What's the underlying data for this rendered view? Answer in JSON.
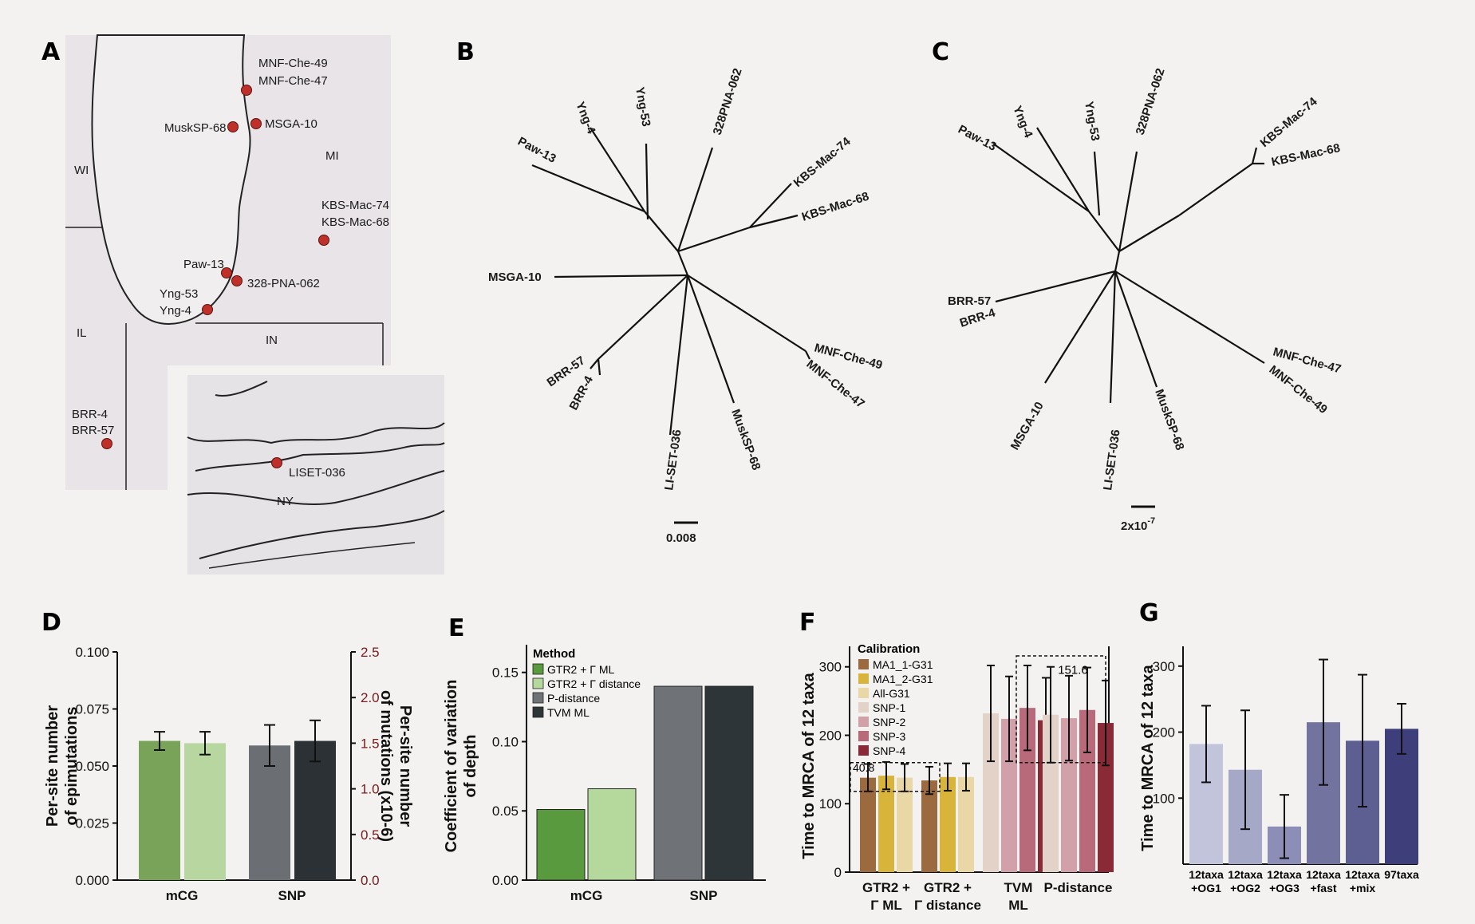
{
  "panels": {
    "A": "A",
    "B": "B",
    "C": "C",
    "D": "D",
    "E": "E",
    "F": "F",
    "G": "G"
  },
  "map": {
    "states": [
      "WI",
      "MI",
      "IL",
      "IN",
      "NY"
    ],
    "sites": [
      {
        "label": "MNF-Che-49\nMNF-Che-47"
      },
      {
        "label": "MuskSP-68"
      },
      {
        "label": "MSGA-10"
      },
      {
        "label": "KBS-Mac-74\nKBS-Mac-68"
      },
      {
        "label": "Paw-13"
      },
      {
        "label": "328-PNA-062"
      },
      {
        "label": "Yng-53\nYng-4"
      },
      {
        "label": "BRR-4\nBRR-57"
      },
      {
        "label": "LISET-036"
      }
    ],
    "site_color": "#c0302a"
  },
  "tree_b": {
    "tips": [
      "Paw-13",
      "Yng-4",
      "Yng-53",
      "328PNA-062",
      "KBS-Mac-74",
      "KBS-Mac-68",
      "MSGA-10",
      "BRR-57",
      "BRR-4",
      "LI-SET-036",
      "MuskSP-68",
      "MNF-Che-49",
      "MNF-Che-47"
    ],
    "scale": "0.008"
  },
  "tree_c": {
    "tips": [
      "Paw-13",
      "Yng-4",
      "Yng-53",
      "328PNA-062",
      "KBS-Mac-74",
      "KBS-Mac-68",
      "BRR-57",
      "BRR-4",
      "MSGA-10",
      "LI-SET-036",
      "MuskSP-68",
      "MNF-Che-47",
      "MNF-Che-49"
    ],
    "scale": "2x10",
    "scale_exp": "-7"
  },
  "chart_data": [
    {
      "panel": "D",
      "type": "bar",
      "categories": [
        "mCG",
        "SNP"
      ],
      "series": [
        {
          "group": "mCG",
          "values": [
            0.061,
            0.06
          ],
          "errors": [
            0.004,
            0.005
          ],
          "colors": [
            "#7aa35a",
            "#b8d6a0"
          ]
        },
        {
          "group": "SNP",
          "values": [
            0.059,
            0.061
          ],
          "errors": [
            0.009,
            0.009
          ],
          "colors": [
            "#6b6f74",
            "#2b3134"
          ]
        }
      ],
      "ylabel_left": "Per-site number of epimutations",
      "ylabel_right": "Per-site number of mutations (x10-6)",
      "ylim_left": [
        0,
        0.1
      ],
      "ylim_right": [
        0,
        2.5
      ],
      "yticks_left": [
        "0.000",
        "0.025",
        "0.050",
        "0.075",
        "0.100"
      ],
      "yticks_right": [
        "0.0",
        "0.5",
        "1.0",
        "1.5",
        "2.0",
        "2.5"
      ],
      "right_axis_color": "#7a1a1a"
    },
    {
      "panel": "E",
      "type": "bar",
      "categories": [
        "mCG",
        "SNP"
      ],
      "legend_title": "Method",
      "legend": [
        "GTR2 + Γ ML",
        "GTR2 + Γ distance",
        "P-distance",
        "TVM ML"
      ],
      "legend_colors": [
        "#5a9a3e",
        "#b5d89c",
        "#6f7377",
        "#2e3538"
      ],
      "series": [
        {
          "group": "mCG",
          "values": [
            0.051,
            0.066
          ],
          "colors": [
            "#5a9a3e",
            "#b5d89c"
          ]
        },
        {
          "group": "SNP",
          "values": [
            0.14,
            0.14
          ],
          "colors": [
            "#6f7377",
            "#2e3538"
          ]
        }
      ],
      "ylabel": "Coefficient of variation of depth",
      "ylim": [
        0,
        0.17
      ],
      "yticks": [
        "0.00",
        "0.05",
        "0.10",
        "0.15"
      ]
    },
    {
      "panel": "F",
      "type": "bar",
      "legend_title": "Calibration",
      "legend": [
        "MA1_1-G31",
        "MA1_2-G31",
        "All-G31",
        "SNP-1",
        "SNP-2",
        "SNP-3",
        "SNP-4"
      ],
      "legend_colors": [
        "#9b6a3e",
        "#d8b53a",
        "#ead7a6",
        "#e3d2c8",
        "#d2a0a8",
        "#b86a7a",
        "#8a2a36"
      ],
      "categories": [
        "GTR2 +\nΓ ML",
        "GTR2 +\nΓ distance",
        "TVM\nML",
        "P-distance"
      ],
      "groups": [
        {
          "category": "GTR2 +\nΓ ML",
          "values": [
            138,
            141,
            138
          ],
          "errors": [
            20,
            20,
            20
          ],
          "colors": [
            "#9b6a3e",
            "#d8b53a",
            "#ead7a6"
          ]
        },
        {
          "category": "GTR2 +\nΓ distance",
          "values": [
            134,
            139,
            139
          ],
          "errors": [
            20,
            20,
            20
          ],
          "colors": [
            "#9b6a3e",
            "#d8b53a",
            "#ead7a6"
          ]
        },
        {
          "category": "TVM\nML",
          "values": [
            232,
            224,
            240,
            222
          ],
          "errors": [
            70,
            62,
            62,
            62
          ],
          "colors": [
            "#e3d2c8",
            "#d2a0a8",
            "#b86a7a",
            "#8a2a36"
          ]
        },
        {
          "category": "P-distance",
          "values": [
            230,
            225,
            237,
            218
          ],
          "errors": [
            70,
            62,
            62,
            62
          ],
          "colors": [
            "#e3d2c8",
            "#d2a0a8",
            "#b86a7a",
            "#8a2a36"
          ]
        }
      ],
      "annotations": [
        "40.8",
        "151.6"
      ],
      "ylabel": "Time to MRCA of 12 taxa",
      "ylim": [
        0,
        330
      ],
      "yticks": [
        "0",
        "100",
        "200",
        "300"
      ]
    },
    {
      "panel": "G",
      "type": "bar",
      "categories": [
        "12taxa\n+OG1",
        "12taxa\n+OG2",
        "12taxa\n+OG3",
        "12taxa\n+fast",
        "12taxa\n+mix",
        "97taxa"
      ],
      "values": [
        182,
        143,
        57,
        215,
        187,
        205
      ],
      "errors": [
        58,
        90,
        48,
        95,
        100,
        38
      ],
      "colors": [
        "#c2c4dc",
        "#a6a8c8",
        "#8c8eb8",
        "#72749f",
        "#5d5f92",
        "#3e3f7a"
      ],
      "ylabel": "Time to MRCA of 12 taxa",
      "ylim": [
        0,
        330
      ],
      "yticks": [
        "100",
        "200",
        "300"
      ]
    }
  ]
}
